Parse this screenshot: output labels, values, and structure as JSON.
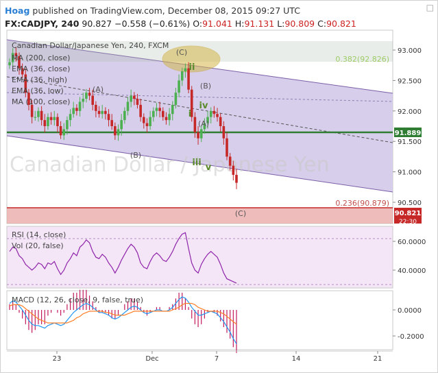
{
  "header": {
    "author": "Hoag",
    "published": "published on TradingView.com, December 08, 2015 09:27 UTC",
    "symbol": "FX:CADJPY, 240",
    "last": "90.827",
    "change": "−0.558 (−0.61%)",
    "open_label": "O:",
    "open": "91.041",
    "high_label": "H:",
    "high": "91.131",
    "low_label": "L:",
    "low": "90.809",
    "close_label": "C:",
    "close": "90.821"
  },
  "watermark": "Canadian Dollar / Japanese Yen",
  "main_pane": {
    "title": "Canadian Dollar/Japanese Yen, 240, FXCM",
    "indicators": [
      "MA (200, close)",
      "EMA (36, close)",
      "EMA (36, high)",
      "EMA (36, low)",
      "MA (100, close)"
    ],
    "y_ticks": [
      "93.000",
      "92.500",
      "92.000",
      "91.500",
      "91.000",
      "90.500"
    ],
    "price_badges": [
      {
        "label": "91.889",
        "color": "#2e7d32"
      },
      {
        "label": "90.821",
        "color": "#c62828"
      },
      {
        "label": "22:30",
        "color": "#c62828"
      }
    ],
    "fib_levels": [
      {
        "label": "0.382(92.826)",
        "color": "#9ccc65"
      },
      {
        "label": "0.236(90.879)",
        "color": "#c0504d"
      }
    ],
    "wave_labels": [
      {
        "text": "(C)",
        "color": "#555"
      },
      {
        "text": "ii",
        "color": "#5a8a2c"
      },
      {
        "text": "(B)",
        "color": "#555"
      },
      {
        "text": "iv",
        "color": "#5a8a2c"
      },
      {
        "text": "i",
        "color": "#5a8a2c"
      },
      {
        "text": "(A)",
        "color": "#555"
      },
      {
        "text": "iii",
        "color": "#5a8a2c"
      },
      {
        "text": "v",
        "color": "#5a8a2c"
      },
      {
        "text": "(A)",
        "color": "#555"
      },
      {
        "text": "(B)",
        "color": "#555"
      },
      {
        "text": "(C)",
        "color": "#555"
      }
    ]
  },
  "rsi_pane": {
    "legend": [
      "RSI (14, close)",
      "Vol (20, false)"
    ],
    "y_ticks": [
      "60.0000",
      "40.0000"
    ]
  },
  "macd_pane": {
    "legend": "MACD (12, 26, close, 9, false, true)",
    "y_ticks": [
      "0.0000",
      "-0.2000"
    ]
  },
  "x_axis": {
    "ticks": [
      "23",
      "Dec",
      "7",
      "14",
      "21"
    ]
  },
  "colors": {
    "up_candle": "#4caf50",
    "down_candle": "#c62828",
    "macd_line": "#2196f3",
    "signal_line": "#ff7f27",
    "hist": "#c2185b",
    "rsi": "#8e24aa",
    "channel_fill": "#cfc6e6",
    "ellipse": "#d4b84a"
  },
  "chart_data": [
    {
      "type": "candlestick",
      "title": "Canadian Dollar/Japanese Yen, 240, FXCM",
      "ylim": [
        90.5,
        93.15
      ],
      "close": [
        92.8,
        92.95,
        92.9,
        92.7,
        92.6,
        92.3,
        92.1,
        91.9,
        91.9,
        92.0,
        91.85,
        91.75,
        91.9,
        91.85,
        91.9,
        91.75,
        91.6,
        91.7,
        91.85,
        91.95,
        92.05,
        92.0,
        92.15,
        92.2,
        92.3,
        92.25,
        92.1,
        92.0,
        91.95,
        92.0,
        91.95,
        91.85,
        91.75,
        91.6,
        91.7,
        91.85,
        92.0,
        92.15,
        92.25,
        92.2,
        92.1,
        91.9,
        91.8,
        91.75,
        91.9,
        92.0,
        92.05,
        92.0,
        91.9,
        91.85,
        91.95,
        92.1,
        92.3,
        92.5,
        92.65,
        92.7,
        92.35,
        91.9,
        91.65,
        91.55,
        91.7,
        91.8,
        91.9,
        92.0,
        91.95,
        91.9,
        91.75,
        91.55,
        91.25,
        91.1,
        90.95,
        90.82
      ],
      "fib": [
        {
          "level": 0.382,
          "price": 92.826
        },
        {
          "level": 0.236,
          "price": 90.879
        }
      ],
      "horizontal_levels": [
        91.889,
        90.821
      ]
    },
    {
      "type": "line",
      "name": "RSI (14, close)",
      "ylim": [
        30,
        70
      ],
      "values": [
        53,
        56,
        55,
        50,
        48,
        44,
        42,
        40,
        42,
        45,
        44,
        41,
        45,
        44,
        46,
        41,
        37,
        40,
        45,
        48,
        52,
        50,
        56,
        58,
        61,
        59,
        53,
        49,
        48,
        51,
        49,
        45,
        42,
        38,
        42,
        47,
        51,
        55,
        58,
        56,
        52,
        45,
        42,
        41,
        46,
        50,
        52,
        50,
        47,
        46,
        49,
        53,
        58,
        62,
        65,
        66,
        55,
        45,
        40,
        38,
        44,
        48,
        51,
        53,
        51,
        49,
        44,
        38,
        34,
        33,
        32,
        31
      ]
    },
    {
      "type": "line",
      "name": "MACD (12, 26, close, 9, false, true)",
      "ylim": [
        -0.28,
        0.12
      ],
      "macd": [
        0.05,
        0.07,
        0.06,
        0.03,
        0.0,
        -0.04,
        -0.08,
        -0.11,
        -0.12,
        -0.12,
        -0.13,
        -0.14,
        -0.12,
        -0.11,
        -0.1,
        -0.11,
        -0.12,
        -0.11,
        -0.08,
        -0.05,
        -0.02,
        0.0,
        0.02,
        0.04,
        0.05,
        0.04,
        0.02,
        0.0,
        -0.02,
        -0.02,
        -0.03,
        -0.04,
        -0.06,
        -0.07,
        -0.06,
        -0.04,
        -0.02,
        0.0,
        0.02,
        0.03,
        0.02,
        0.0,
        -0.02,
        -0.03,
        -0.02,
        -0.01,
        0.0,
        0.0,
        -0.01,
        -0.01,
        0.0,
        0.02,
        0.05,
        0.08,
        0.1,
        0.09,
        0.06,
        0.02,
        -0.01,
        -0.04,
        -0.04,
        -0.03,
        -0.02,
        -0.01,
        -0.02,
        -0.03,
        -0.06,
        -0.09,
        -0.13,
        -0.17,
        -0.22,
        -0.26
      ],
      "signal": [
        0.03,
        0.04,
        0.04,
        0.04,
        0.03,
        0.01,
        -0.01,
        -0.03,
        -0.05,
        -0.07,
        -0.08,
        -0.09,
        -0.1,
        -0.1,
        -0.1,
        -0.1,
        -0.1,
        -0.1,
        -0.1,
        -0.09,
        -0.08,
        -0.06,
        -0.05,
        -0.03,
        -0.02,
        -0.01,
        -0.01,
        -0.01,
        -0.01,
        -0.01,
        -0.02,
        -0.02,
        -0.03,
        -0.04,
        -0.04,
        -0.04,
        -0.04,
        -0.03,
        -0.02,
        -0.01,
        -0.01,
        -0.01,
        -0.01,
        -0.01,
        -0.01,
        -0.01,
        -0.01,
        -0.01,
        -0.01,
        -0.01,
        -0.01,
        0.0,
        0.01,
        0.02,
        0.04,
        0.05,
        0.05,
        0.05,
        0.04,
        0.02,
        0.01,
        0.0,
        -0.01,
        -0.01,
        -0.01,
        -0.01,
        -0.02,
        -0.03,
        -0.05,
        -0.07,
        -0.09,
        -0.11
      ]
    }
  ]
}
